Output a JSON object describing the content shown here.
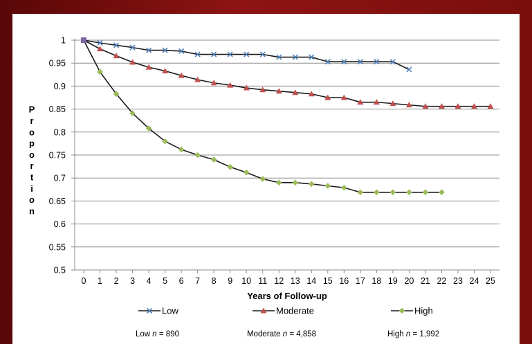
{
  "chart_data": {
    "type": "line",
    "xlabel": "Years of Follow-up",
    "ylabel": "Proportion",
    "x": [
      0,
      1,
      2,
      3,
      4,
      5,
      6,
      7,
      8,
      9,
      10,
      11,
      12,
      13,
      14,
      15,
      16,
      17,
      18,
      19,
      20,
      21,
      22,
      23,
      24,
      25
    ],
    "xlim": [
      0,
      25
    ],
    "ylim": [
      0.5,
      1
    ],
    "y_ticks": [
      "0.5",
      "0.55",
      "0.6",
      "0.65",
      "0.7",
      "0.75",
      "0.8",
      "0.85",
      "0.9",
      "0.95",
      "1"
    ],
    "grid": "horizontal",
    "legend_position": "bottom",
    "series": [
      {
        "name": "Low",
        "color": "#4f81bd",
        "marker": "x",
        "x": [
          0,
          1,
          2,
          3,
          4,
          5,
          6,
          7,
          8,
          9,
          10,
          11,
          12,
          13,
          14,
          15,
          16,
          17,
          18,
          19,
          20
        ],
        "values": [
          1.0,
          0.994,
          0.989,
          0.984,
          0.978,
          0.978,
          0.976,
          0.969,
          0.969,
          0.969,
          0.969,
          0.969,
          0.963,
          0.963,
          0.963,
          0.953,
          0.953,
          0.953,
          0.953,
          0.953,
          0.936
        ]
      },
      {
        "name": "Moderate",
        "color": "#c0504d",
        "marker": "triangle",
        "x": [
          0,
          1,
          2,
          3,
          4,
          5,
          6,
          7,
          8,
          9,
          10,
          11,
          12,
          13,
          14,
          15,
          16,
          17,
          18,
          19,
          20,
          21,
          22,
          23,
          24,
          25
        ],
        "values": [
          1.0,
          0.981,
          0.966,
          0.952,
          0.941,
          0.933,
          0.923,
          0.914,
          0.907,
          0.902,
          0.896,
          0.892,
          0.889,
          0.886,
          0.883,
          0.875,
          0.875,
          0.865,
          0.865,
          0.862,
          0.859,
          0.856,
          0.856,
          0.856,
          0.856,
          0.856
        ]
      },
      {
        "name": "High",
        "color": "#9bbb59",
        "marker": "diamond",
        "x": [
          0,
          1,
          2,
          3,
          4,
          5,
          6,
          7,
          8,
          9,
          10,
          11,
          12,
          13,
          14,
          15,
          16,
          17,
          18,
          19,
          20,
          21,
          22
        ],
        "values": [
          1.0,
          0.931,
          0.883,
          0.841,
          0.808,
          0.78,
          0.762,
          0.75,
          0.74,
          0.724,
          0.712,
          0.698,
          0.69,
          0.69,
          0.687,
          0.683,
          0.679,
          0.669,
          0.669,
          0.669,
          0.669,
          0.669,
          0.669
        ]
      }
    ],
    "sample_sizes": [
      {
        "label": "Low",
        "n": "890"
      },
      {
        "label": "Moderate",
        "n": "4,858"
      },
      {
        "label": "High",
        "n": "1,992"
      }
    ]
  }
}
